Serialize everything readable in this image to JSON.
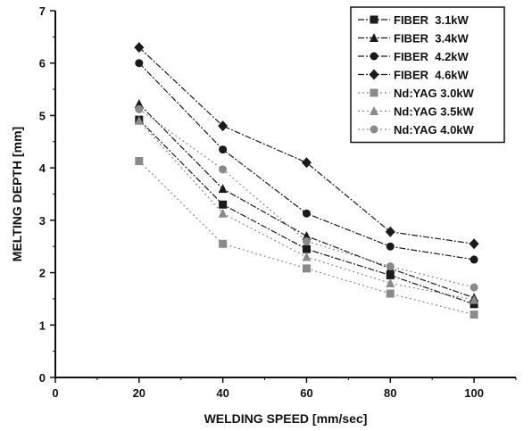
{
  "chart_data": {
    "type": "line",
    "title": "",
    "xlabel": "WELDING SPEED [mm/sec]",
    "ylabel": "MELTING DEPTH [mm]",
    "xlim": [
      0,
      110
    ],
    "ylim": [
      0,
      7
    ],
    "xticks": [
      0,
      20,
      40,
      60,
      80,
      100
    ],
    "yticks": [
      0,
      1,
      2,
      3,
      4,
      5,
      6,
      7
    ],
    "grid": false,
    "legend_position": "top-right",
    "x": [
      20,
      40,
      60,
      80,
      100
    ],
    "series": [
      {
        "name": "FIBER  3.1kW",
        "marker": "square",
        "line": "solid",
        "color": "#1a1a1a",
        "values": [
          4.92,
          3.3,
          2.45,
          1.95,
          1.4
        ]
      },
      {
        "name": "FIBER  3.4kW",
        "marker": "triangle",
        "line": "solid",
        "color": "#1a1a1a",
        "values": [
          5.22,
          3.6,
          2.7,
          2.08,
          1.52
        ]
      },
      {
        "name": "FIBER  4.2kW",
        "marker": "circle",
        "line": "solid",
        "color": "#1a1a1a",
        "values": [
          6.0,
          4.35,
          3.13,
          2.5,
          2.25
        ]
      },
      {
        "name": "FIBER  4.6kW",
        "marker": "diamond",
        "line": "solid",
        "color": "#1a1a1a",
        "values": [
          6.3,
          4.8,
          4.1,
          2.78,
          2.55
        ]
      },
      {
        "name": "Nd:YAG 3.0kW",
        "marker": "square",
        "line": "dotted",
        "color": "#8a8a8a",
        "values": [
          4.13,
          2.55,
          2.08,
          1.6,
          1.2
        ]
      },
      {
        "name": "Nd:YAG 3.5kW",
        "marker": "triangle",
        "line": "dotted",
        "color": "#8a8a8a",
        "values": [
          4.9,
          3.13,
          2.3,
          1.8,
          1.48
        ]
      },
      {
        "name": "Nd:YAG 4.0kW",
        "marker": "circle",
        "line": "dotted",
        "color": "#8a8a8a",
        "values": [
          5.12,
          3.97,
          2.6,
          2.12,
          1.72
        ]
      }
    ]
  }
}
